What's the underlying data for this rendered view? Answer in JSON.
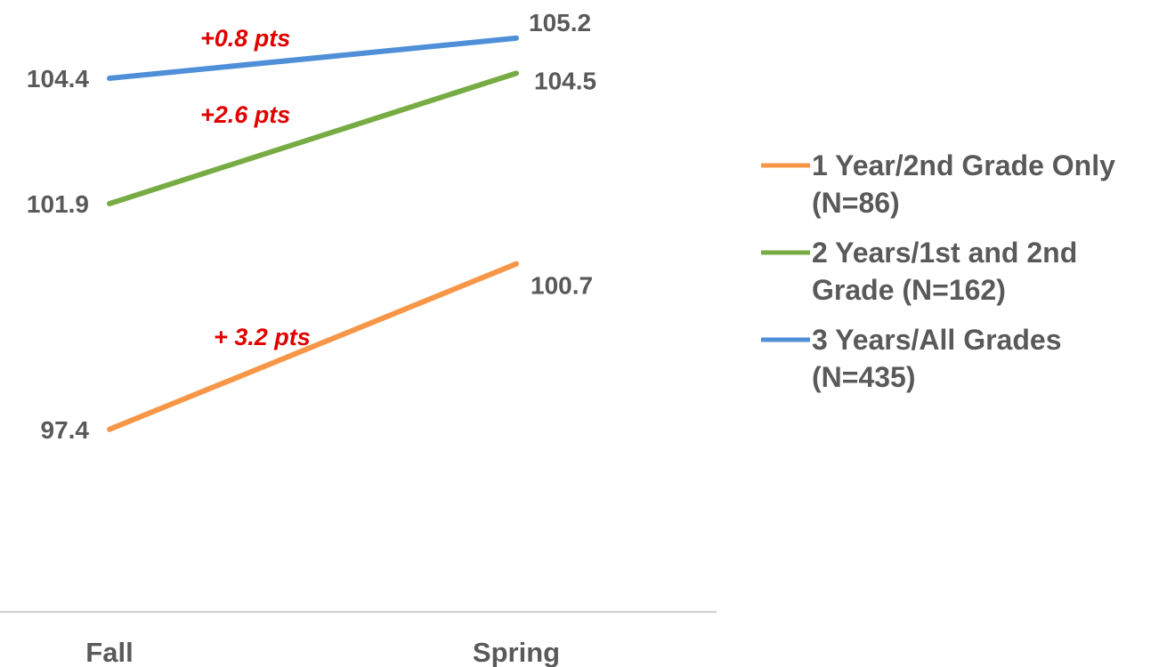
{
  "chart_data": {
    "type": "line",
    "categories": [
      "Fall",
      "Spring"
    ],
    "series": [
      {
        "name": "1 Year/2nd Grade Only (N=86)",
        "legend_lines": [
          "1 Year/2nd Grade Only",
          "(N=86)"
        ],
        "color": "#f79646",
        "values": [
          97.4,
          100.7
        ],
        "labels": [
          "97.4",
          "100.7"
        ]
      },
      {
        "name": "2 Years/1st and 2nd Grade (N=162)",
        "legend_lines": [
          "2 Years/1st and 2nd",
          "Grade (N=162)"
        ],
        "color": "#77ab43",
        "values": [
          101.9,
          104.5
        ],
        "labels": [
          "101.9",
          "104.5"
        ]
      },
      {
        "name": "3 Years/All Grades (N=435)",
        "legend_lines": [
          "3 Years/All Grades",
          "(N=435)"
        ],
        "color": "#4f8fd8",
        "values": [
          104.4,
          105.2
        ],
        "labels": [
          "104.4",
          "105.2"
        ]
      }
    ],
    "annotations": [
      {
        "text": "+0.8 pts",
        "series": 2
      },
      {
        "text": "+2.6 pts",
        "series": 1
      },
      {
        "text": "+ 3.2 pts",
        "series": 0
      }
    ],
    "legend_position": "right",
    "grid": false
  }
}
